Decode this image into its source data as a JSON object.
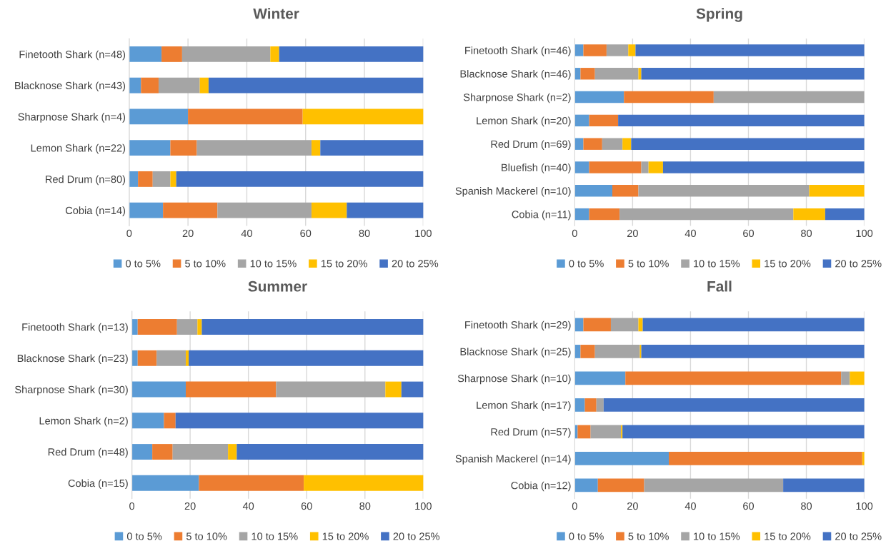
{
  "chart_data": [
    {
      "type": "bar",
      "orientation": "horizontal",
      "stacked": true,
      "title": "Winter",
      "categories": [
        "Finetooth Shark (n=48)",
        "Blacknose Shark (n=43)",
        "Sharpnose Shark (n=4)",
        "Lemon Shark (n=22)",
        "Red Drum (n=80)",
        "Cobia (n=14)"
      ],
      "xlim": [
        0,
        100
      ],
      "xticks": [
        0,
        20,
        40,
        60,
        80,
        100
      ],
      "grid": "x",
      "legend": "bottom",
      "series": [
        {
          "name": "0 to 5%",
          "color": "#5b9bd5",
          "values": [
            11,
            4,
            20,
            14,
            3,
            11.5
          ]
        },
        {
          "name": "5 to 10%",
          "color": "#ed7d31",
          "values": [
            7,
            6,
            39,
            9,
            5,
            18.5
          ]
        },
        {
          "name": "10 to 15%",
          "color": "#a5a5a5",
          "values": [
            30,
            14,
            0,
            39,
            6,
            32
          ]
        },
        {
          "name": "15 to 20%",
          "color": "#ffc000",
          "values": [
            3,
            3,
            41,
            3,
            2,
            12
          ]
        },
        {
          "name": "20 to 25%",
          "color": "#4472c4",
          "values": [
            49,
            73,
            0,
            35,
            84,
            26
          ]
        }
      ]
    },
    {
      "type": "bar",
      "orientation": "horizontal",
      "stacked": true,
      "title": "Spring",
      "categories": [
        "Finetooth Shark (n=46)",
        "Blacknose Shark (n=46)",
        "Sharpnose Shark (n=2)",
        "Lemon Shark (n=20)",
        "Red Drum (n=69)",
        "Bluefish (n=40)",
        "Spanish Mackerel (n=10)",
        "Cobia (n=11)"
      ],
      "xlim": [
        0,
        100
      ],
      "xticks": [
        0,
        20,
        40,
        60,
        80,
        100
      ],
      "grid": "x",
      "legend": "bottom",
      "series": [
        {
          "name": "0 to 5%",
          "color": "#5b9bd5",
          "values": [
            3,
            2,
            17,
            5,
            3,
            5,
            13,
            5
          ]
        },
        {
          "name": "5 to 10%",
          "color": "#ed7d31",
          "values": [
            8,
            5,
            31,
            10,
            6.5,
            18,
            9,
            10.5
          ]
        },
        {
          "name": "10 to 15%",
          "color": "#a5a5a5",
          "values": [
            7.5,
            15,
            52,
            0,
            7,
            2.5,
            59,
            60
          ]
        },
        {
          "name": "15 to 20%",
          "color": "#ffc000",
          "values": [
            2.5,
            1,
            0,
            0,
            3,
            5,
            19,
            11
          ]
        },
        {
          "name": "20 to 25%",
          "color": "#4472c4",
          "values": [
            79,
            77,
            0,
            85,
            80.5,
            69.5,
            0,
            13.5
          ]
        }
      ]
    },
    {
      "type": "bar",
      "orientation": "horizontal",
      "stacked": true,
      "title": "Summer",
      "categories": [
        "Finetooth Shark (n=13)",
        "Blacknose Shark (n=23)",
        "Sharpnose Shark (n=30)",
        "Lemon Shark (n=2)",
        "Red Drum (n=48)",
        "Cobia (n=15)"
      ],
      "xlim": [
        0,
        100
      ],
      "xticks": [
        0,
        20,
        40,
        60,
        80,
        100
      ],
      "grid": "x",
      "legend": "bottom",
      "series": [
        {
          "name": "0 to 5%",
          "color": "#5b9bd5",
          "values": [
            2,
            2,
            18.5,
            11,
            7,
            23
          ]
        },
        {
          "name": "5 to 10%",
          "color": "#ed7d31",
          "values": [
            13.5,
            6.5,
            31,
            4,
            7,
            36
          ]
        },
        {
          "name": "10 to 15%",
          "color": "#a5a5a5",
          "values": [
            7,
            10,
            37.5,
            0,
            19,
            0
          ]
        },
        {
          "name": "15 to 20%",
          "color": "#ffc000",
          "values": [
            1.5,
            1,
            5.5,
            0,
            3,
            41
          ]
        },
        {
          "name": "20 to 25%",
          "color": "#4472c4",
          "values": [
            76,
            80.5,
            7.5,
            85,
            64,
            0
          ]
        }
      ]
    },
    {
      "type": "bar",
      "orientation": "horizontal",
      "stacked": true,
      "title": "Fall",
      "categories": [
        "Finetooth Shark (n=29)",
        "Blacknose Shark (n=25)",
        "Sharpnose Shark (n=10)",
        "Lemon Shark (n=17)",
        "Red Drum (n=57)",
        "Spanish Mackerel (n=14)",
        "Cobia (n=12)"
      ],
      "xlim": [
        0,
        100
      ],
      "xticks": [
        0,
        20,
        40,
        60,
        80,
        100
      ],
      "grid": "x",
      "legend": "bottom",
      "series": [
        {
          "name": "0 to 5%",
          "color": "#5b9bd5",
          "values": [
            3,
            2,
            17.5,
            3.5,
            1,
            32.5,
            8
          ]
        },
        {
          "name": "5 to 10%",
          "color": "#ed7d31",
          "values": [
            9.5,
            5,
            74.5,
            4,
            4.5,
            66.8,
            16
          ]
        },
        {
          "name": "10 to 15%",
          "color": "#a5a5a5",
          "values": [
            9.5,
            15.5,
            3,
            2.5,
            10.5,
            0,
            48
          ]
        },
        {
          "name": "15 to 20%",
          "color": "#ffc000",
          "values": [
            1.5,
            0.5,
            5,
            0,
            0.5,
            0.7,
            0
          ]
        },
        {
          "name": "20 to 25%",
          "color": "#4472c4",
          "values": [
            76.5,
            77,
            0,
            90,
            83.5,
            0,
            28
          ]
        }
      ]
    }
  ]
}
